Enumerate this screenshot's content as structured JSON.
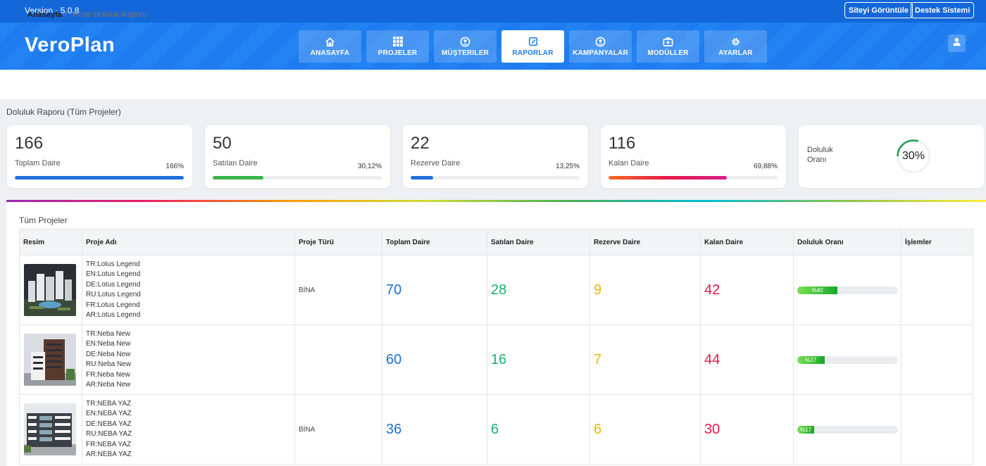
{
  "app": {
    "version": "Version - 5.0.8",
    "logo": "VeroPlan"
  },
  "top_buttons": {
    "view_site": "Siteyi Görüntüle",
    "support": "Destek Sistemi"
  },
  "nav": [
    {
      "label": "ANASAYFA",
      "icon": "home-icon",
      "active": false
    },
    {
      "label": "PROJELER",
      "icon": "grid-icon",
      "active": false
    },
    {
      "label": "MÜŞTERILER",
      "icon": "user-circle-icon",
      "active": false
    },
    {
      "label": "RAPORLAR",
      "icon": "report-edit-icon",
      "active": true
    },
    {
      "label": "KAMPANYALAR",
      "icon": "user-circle-icon",
      "active": false
    },
    {
      "label": "MODÜLLER",
      "icon": "medical-box-icon",
      "active": false
    },
    {
      "label": "AYARLAR",
      "icon": "gear-icon",
      "active": false
    }
  ],
  "breadcrumb": {
    "home": "Anasayfa",
    "separator": "/",
    "current": "Proje Doluluk Raporu"
  },
  "page_title": "Doluluk Raporu (Tüm Projeler)",
  "stats": [
    {
      "value": "166",
      "label": "Toplam Daire",
      "percent_text": "166%",
      "fill": 1.0,
      "color": "#1e6fd9"
    },
    {
      "value": "50",
      "label": "Satılan Daire",
      "percent_text": "30,12%",
      "fill": 0.3012,
      "color": "#3bb54a"
    },
    {
      "value": "22",
      "label": "Rezerve Daire",
      "percent_text": "13,25%",
      "fill": 0.1325,
      "color": "#1e6fd9"
    },
    {
      "value": "116",
      "label": "Kalan Daire",
      "percent_text": "69,88%",
      "fill": 0.6988,
      "color": "#e8174b"
    }
  ],
  "occupancy": {
    "label": "Doluluk Oranı",
    "value_text": "30%",
    "fraction": 0.3,
    "color": "#17a34a"
  },
  "table": {
    "title": "Tüm Projeler",
    "headers": [
      "Resim",
      "Proje Adı",
      "Proje Türü",
      "Toplam Daire",
      "Satılan Daire",
      "Rezerve Daire",
      "Kalan Daire",
      "Doluluk Oranı",
      "İşlemler"
    ],
    "rows": [
      {
        "names": [
          "TR:Lotus Legend",
          "EN:Lotus Legend",
          "DE:Lotus Legend",
          "RU:Lotus Legend",
          "FR:Lotus Legend",
          "AR:Lotus Legend"
        ],
        "type": "BİNA",
        "total": "70",
        "sold": "28",
        "reserved": "9",
        "remaining": "42",
        "ratio_text": "%40",
        "ratio": 0.4,
        "image": "lotus-legend-photo"
      },
      {
        "names": [
          "TR:Neba New",
          "EN:Neba New",
          "DE:Neba New",
          "RU:Neba New",
          "FR:Neba New",
          "AR:Neba New"
        ],
        "type": "",
        "total": "60",
        "sold": "16",
        "reserved": "7",
        "remaining": "44",
        "ratio_text": "%27",
        "ratio": 0.27,
        "image": "neba-new-photo"
      },
      {
        "names": [
          "TR:NEBA YAZ",
          "EN:NEBA YAZ",
          "DE:NEBA YAZ",
          "RU:NEBA YAZ",
          "FR:NEBA YAZ",
          "AR:NEBA YAZ"
        ],
        "type": "BİNA",
        "total": "36",
        "sold": "6",
        "reserved": "6",
        "remaining": "30",
        "ratio_text": "%17",
        "ratio": 0.17,
        "image": "neba-yaz-photo"
      }
    ]
  }
}
